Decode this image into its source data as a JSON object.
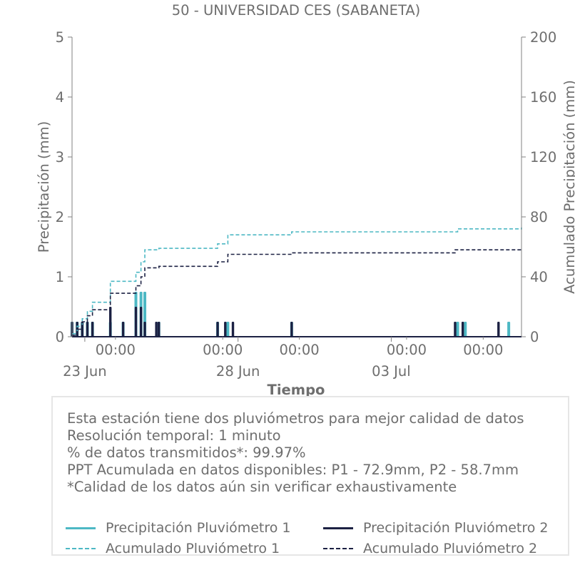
{
  "chart_data": {
    "type": "bar",
    "title": "50 - UNIVERSIDAD CES (SABANETA)",
    "xlabel": "Tiempo",
    "ylabel": "Precipitación (mm)",
    "ylabel_right": "Acumulado Precipitación (mm)",
    "ylim": [
      0,
      5
    ],
    "ylim_right": [
      0,
      200
    ],
    "y_ticks": [
      "0",
      "1",
      "2",
      "3",
      "4",
      "5"
    ],
    "y_ticks_right": [
      "0",
      "40",
      "80",
      "120",
      "160",
      "200"
    ],
    "x_range": [
      "2025-06-22T14:00",
      "2025-07-07T06:00"
    ],
    "x_ticks_time": [
      {
        "x": "2025-06-24T00:00",
        "label": "00:00"
      },
      {
        "x": "2025-06-27T12:00",
        "label": "00:00"
      },
      {
        "x": "2025-06-30T00:00",
        "label": "00:00"
      },
      {
        "x": "2025-07-03T12:00",
        "label": "00:00"
      },
      {
        "x": "2025-07-06T00:00",
        "label": "00:00"
      }
    ],
    "x_ticks_date": [
      {
        "x": "2025-06-23T00:00",
        "label": "23 Jun"
      },
      {
        "x": "2025-06-28T00:00",
        "label": "28 Jun"
      },
      {
        "x": "2025-07-03T00:00",
        "label": "03 Jul"
      }
    ],
    "series": [
      {
        "name": "Precipitación Pluviómetro 1",
        "kind": "bars",
        "axis": "left",
        "color": "#4db8c4",
        "points": [
          {
            "x": "2025-06-22T14:00",
            "y": 0.25
          },
          {
            "x": "2025-06-22T18:00",
            "y": 0.25
          },
          {
            "x": "2025-06-22T22:00",
            "y": 0.25
          },
          {
            "x": "2025-06-23T02:00",
            "y": 0.25
          },
          {
            "x": "2025-06-23T06:00",
            "y": 0.25
          },
          {
            "x": "2025-06-23T20:00",
            "y": 0.25
          },
          {
            "x": "2025-06-24T06:00",
            "y": 0.25
          },
          {
            "x": "2025-06-24T16:00",
            "y": 0.75
          },
          {
            "x": "2025-06-24T20:00",
            "y": 0.75
          },
          {
            "x": "2025-06-24T23:00",
            "y": 0.75
          },
          {
            "x": "2025-06-25T10:00",
            "y": 0.25
          },
          {
            "x": "2025-06-27T08:00",
            "y": 0.25
          },
          {
            "x": "2025-06-27T16:00",
            "y": 0.25
          },
          {
            "x": "2025-06-29T18:00",
            "y": 0.25
          },
          {
            "x": "2025-07-05T04:00",
            "y": 0.25
          },
          {
            "x": "2025-07-05T10:00",
            "y": 0.25
          },
          {
            "x": "2025-07-06T20:00",
            "y": 0.25
          }
        ]
      },
      {
        "name": "Precipitación Pluviómetro 2",
        "kind": "bars",
        "axis": "left",
        "color": "#1c2143",
        "points": [
          {
            "x": "2025-06-22T14:00",
            "y": 0.25
          },
          {
            "x": "2025-06-22T18:00",
            "y": 0.25
          },
          {
            "x": "2025-06-22T22:00",
            "y": 0.25
          },
          {
            "x": "2025-06-23T02:00",
            "y": 0.25
          },
          {
            "x": "2025-06-23T06:00",
            "y": 0.25
          },
          {
            "x": "2025-06-23T20:00",
            "y": 0.5
          },
          {
            "x": "2025-06-24T06:00",
            "y": 0.25
          },
          {
            "x": "2025-06-24T16:00",
            "y": 0.5
          },
          {
            "x": "2025-06-24T20:00",
            "y": 0.5
          },
          {
            "x": "2025-06-24T23:00",
            "y": 0.25
          },
          {
            "x": "2025-06-25T08:00",
            "y": 0.25
          },
          {
            "x": "2025-06-25T10:00",
            "y": 0.25
          },
          {
            "x": "2025-06-27T08:00",
            "y": 0.25
          },
          {
            "x": "2025-06-27T14:00",
            "y": 0.25
          },
          {
            "x": "2025-06-27T20:00",
            "y": 0.25
          },
          {
            "x": "2025-06-29T18:00",
            "y": 0.25
          },
          {
            "x": "2025-07-05T02:00",
            "y": 0.25
          },
          {
            "x": "2025-07-05T08:00",
            "y": 0.25
          },
          {
            "x": "2025-07-06T12:00",
            "y": 0.25
          }
        ]
      },
      {
        "name": "Acumulado Pluviómetro 1",
        "kind": "step",
        "axis": "right",
        "color": "#4db8c4",
        "points": [
          {
            "x": "2025-06-22T14:00",
            "y": 2
          },
          {
            "x": "2025-06-22T18:00",
            "y": 7
          },
          {
            "x": "2025-06-22T22:00",
            "y": 12
          },
          {
            "x": "2025-06-23T02:00",
            "y": 17
          },
          {
            "x": "2025-06-23T06:00",
            "y": 23
          },
          {
            "x": "2025-06-23T20:00",
            "y": 37
          },
          {
            "x": "2025-06-24T16:00",
            "y": 43
          },
          {
            "x": "2025-06-24T20:00",
            "y": 50
          },
          {
            "x": "2025-06-24T23:00",
            "y": 58
          },
          {
            "x": "2025-06-25T10:00",
            "y": 59
          },
          {
            "x": "2025-06-27T08:00",
            "y": 62
          },
          {
            "x": "2025-06-27T16:00",
            "y": 68
          },
          {
            "x": "2025-06-29T18:00",
            "y": 70
          },
          {
            "x": "2025-07-05T04:00",
            "y": 72
          },
          {
            "x": "2025-07-07T06:00",
            "y": 73
          }
        ]
      },
      {
        "name": "Acumulado Pluviómetro 2",
        "kind": "step",
        "axis": "right",
        "color": "#1c2143",
        "points": [
          {
            "x": "2025-06-22T14:00",
            "y": 1
          },
          {
            "x": "2025-06-22T18:00",
            "y": 5
          },
          {
            "x": "2025-06-22T22:00",
            "y": 10
          },
          {
            "x": "2025-06-23T02:00",
            "y": 14
          },
          {
            "x": "2025-06-23T06:00",
            "y": 18
          },
          {
            "x": "2025-06-23T20:00",
            "y": 29
          },
          {
            "x": "2025-06-24T16:00",
            "y": 34
          },
          {
            "x": "2025-06-24T20:00",
            "y": 40
          },
          {
            "x": "2025-06-24T23:00",
            "y": 46
          },
          {
            "x": "2025-06-25T10:00",
            "y": 47
          },
          {
            "x": "2025-06-27T08:00",
            "y": 50
          },
          {
            "x": "2025-06-27T16:00",
            "y": 55
          },
          {
            "x": "2025-06-29T18:00",
            "y": 56
          },
          {
            "x": "2025-07-05T02:00",
            "y": 58
          },
          {
            "x": "2025-07-07T06:00",
            "y": 59
          }
        ]
      }
    ],
    "grid": false,
    "legend_placement": "bottom"
  },
  "info": {
    "lines": [
      "Esta estación tiene dos pluviómetros para mejor calidad de datos",
      "Resolución temporal: 1 minuto",
      "% de datos transmitidos*: 99.97%",
      "PPT Acumulada en datos disponibles: P1 - 72.9mm, P2 - 58.7mm",
      "*Calidad de los datos aún sin verificar exhaustivamente"
    ]
  },
  "legend": [
    {
      "label": "Precipitación Pluviómetro 1",
      "color": "#4db8c4",
      "style": "solid"
    },
    {
      "label": "Precipitación Pluviómetro 2",
      "color": "#1c2143",
      "style": "solid"
    },
    {
      "label": "Acumulado Pluviómetro 1",
      "color": "#4db8c4",
      "style": "dashed"
    },
    {
      "label": "Acumulado Pluviómetro 2",
      "color": "#1c2143",
      "style": "dashed"
    }
  ]
}
